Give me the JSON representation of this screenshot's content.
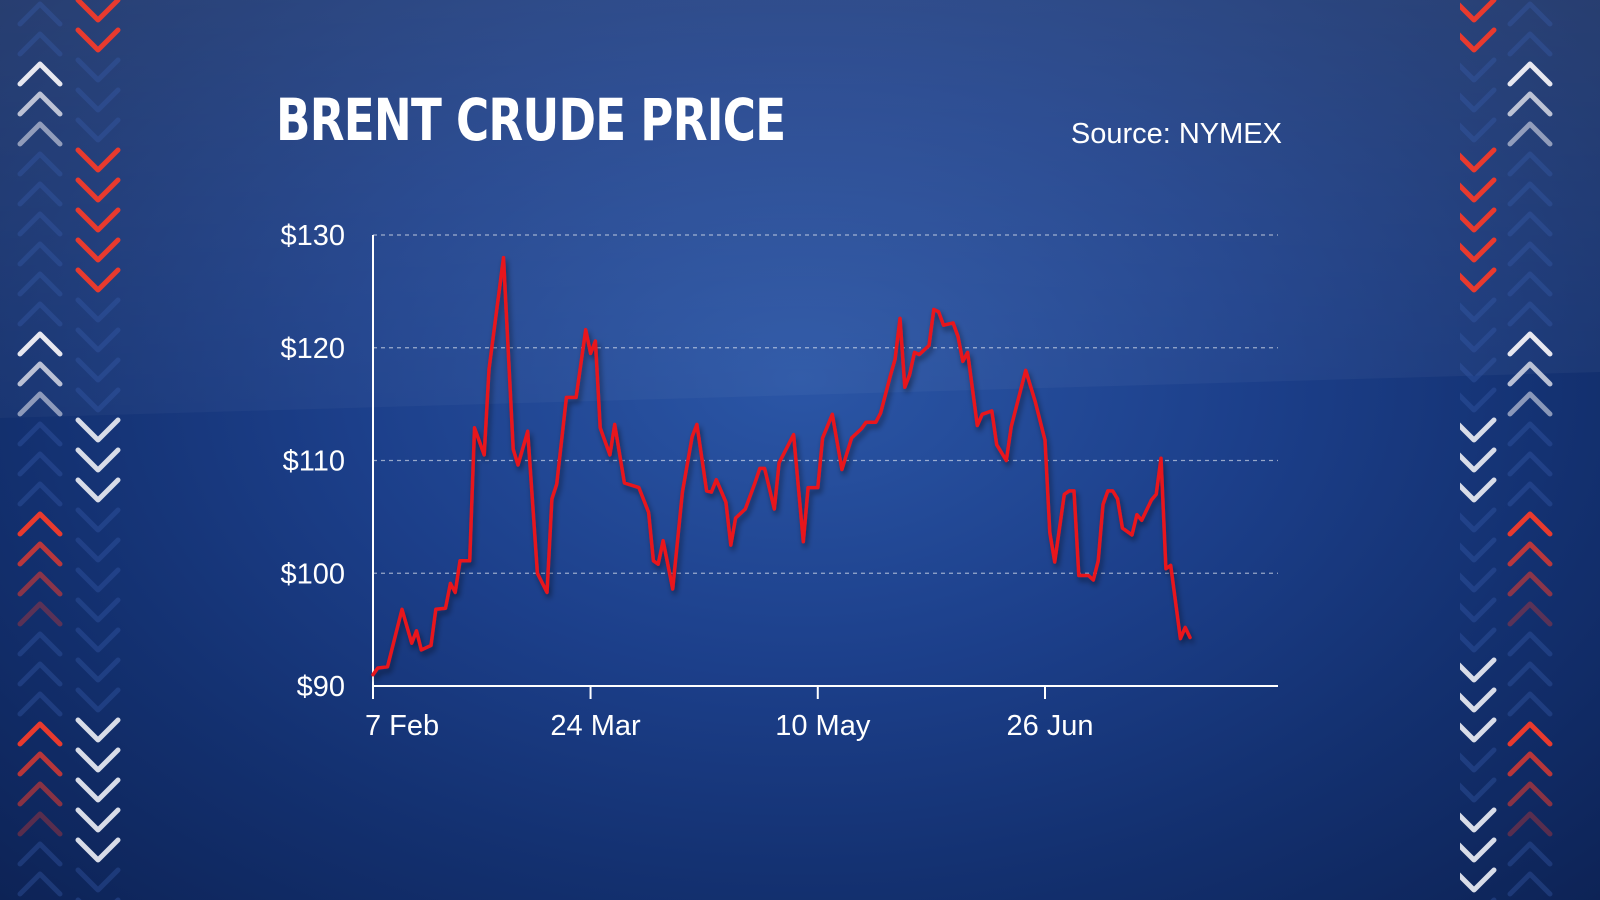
{
  "chart_data": {
    "type": "line",
    "title": "BRENT CRUDE PRICE",
    "source": "Source: NYMEX",
    "xlabel": "",
    "ylabel": "",
    "ylim": [
      90,
      130
    ],
    "y_ticks": [
      90,
      100,
      110,
      120,
      130
    ],
    "y_tick_labels": [
      "$90",
      "$100",
      "$110",
      "$120",
      "$130"
    ],
    "x_ticks": [
      {
        "label": "7 Feb",
        "day": 0
      },
      {
        "label": "24 Mar",
        "day": 45
      },
      {
        "label": "10 May",
        "day": 92
      },
      {
        "label": "26 Jun",
        "day": 139
      }
    ],
    "grid": true,
    "line_color": "#e8141e",
    "series": [
      {
        "values": [
          [
            0,
            91.0
          ],
          [
            1,
            91.6
          ],
          [
            3,
            91.7
          ],
          [
            6,
            96.8
          ],
          [
            8,
            93.8
          ],
          [
            9,
            94.9
          ],
          [
            10,
            93.2
          ],
          [
            12,
            93.6
          ],
          [
            13,
            96.8
          ],
          [
            15,
            96.9
          ],
          [
            16,
            99.1
          ],
          [
            17,
            98.3
          ],
          [
            18,
            101.1
          ],
          [
            20,
            101.1
          ],
          [
            21,
            112.9
          ],
          [
            23,
            110.5
          ],
          [
            24,
            118.1
          ],
          [
            27,
            128.0
          ],
          [
            29,
            111.0
          ],
          [
            30,
            109.6
          ],
          [
            32,
            112.6
          ],
          [
            34,
            100.0
          ],
          [
            36,
            98.3
          ],
          [
            37,
            106.6
          ],
          [
            38,
            107.9
          ],
          [
            40,
            115.6
          ],
          [
            42,
            115.6
          ],
          [
            44,
            121.6
          ],
          [
            45,
            119.5
          ],
          [
            46,
            120.6
          ],
          [
            47,
            112.9
          ],
          [
            49,
            110.5
          ],
          [
            50,
            113.2
          ],
          [
            52,
            108.0
          ],
          [
            55,
            107.6
          ],
          [
            57,
            105.4
          ],
          [
            58,
            101.1
          ],
          [
            59,
            100.8
          ],
          [
            60,
            102.9
          ],
          [
            62,
            98.6
          ],
          [
            64,
            107.2
          ],
          [
            66,
            112.1
          ],
          [
            67,
            113.2
          ],
          [
            69,
            107.3
          ],
          [
            70,
            107.2
          ],
          [
            71,
            108.3
          ],
          [
            73,
            106.3
          ],
          [
            74,
            102.5
          ],
          [
            75,
            104.9
          ],
          [
            77,
            105.7
          ],
          [
            79,
            108.0
          ],
          [
            80,
            109.3
          ],
          [
            81,
            109.3
          ],
          [
            83,
            105.7
          ],
          [
            84,
            109.8
          ],
          [
            87,
            112.3
          ],
          [
            89,
            102.8
          ],
          [
            90,
            107.6
          ],
          [
            92,
            107.6
          ],
          [
            93,
            112.0
          ],
          [
            95,
            114.1
          ],
          [
            97,
            109.2
          ],
          [
            99,
            112.0
          ],
          [
            101,
            112.8
          ],
          [
            102,
            113.4
          ],
          [
            104,
            113.4
          ],
          [
            105,
            114.2
          ],
          [
            107,
            117.5
          ],
          [
            108,
            119.0
          ],
          [
            109,
            122.6
          ],
          [
            110,
            116.5
          ],
          [
            111,
            117.6
          ],
          [
            112,
            119.6
          ],
          [
            113,
            119.4
          ],
          [
            115,
            120.2
          ],
          [
            116,
            123.4
          ],
          [
            117,
            123.2
          ],
          [
            118,
            122.0
          ],
          [
            120,
            122.2
          ],
          [
            121,
            121.0
          ],
          [
            122,
            118.8
          ],
          [
            123,
            119.6
          ],
          [
            125,
            113.1
          ],
          [
            126,
            114.1
          ],
          [
            128,
            114.4
          ],
          [
            129,
            111.4
          ],
          [
            131,
            110.0
          ],
          [
            132,
            113.0
          ],
          [
            135,
            118.0
          ],
          [
            137,
            115.2
          ],
          [
            139,
            111.8
          ],
          [
            140,
            103.6
          ],
          [
            141,
            101.0
          ],
          [
            143,
            107.0
          ],
          [
            144,
            107.3
          ],
          [
            145,
            107.3
          ],
          [
            146,
            99.8
          ],
          [
            148,
            99.8
          ],
          [
            149,
            99.4
          ],
          [
            150,
            101.1
          ],
          [
            151,
            106.1
          ],
          [
            152,
            107.3
          ],
          [
            153,
            107.3
          ],
          [
            154,
            106.6
          ],
          [
            155,
            104.0
          ],
          [
            157,
            103.4
          ],
          [
            158,
            105.2
          ],
          [
            159,
            104.7
          ],
          [
            161,
            106.5
          ],
          [
            162,
            107.0
          ],
          [
            163,
            110.2
          ],
          [
            164,
            100.4
          ],
          [
            165,
            100.7
          ],
          [
            167,
            94.2
          ],
          [
            168,
            95.2
          ],
          [
            169,
            94.3
          ]
        ]
      }
    ]
  }
}
